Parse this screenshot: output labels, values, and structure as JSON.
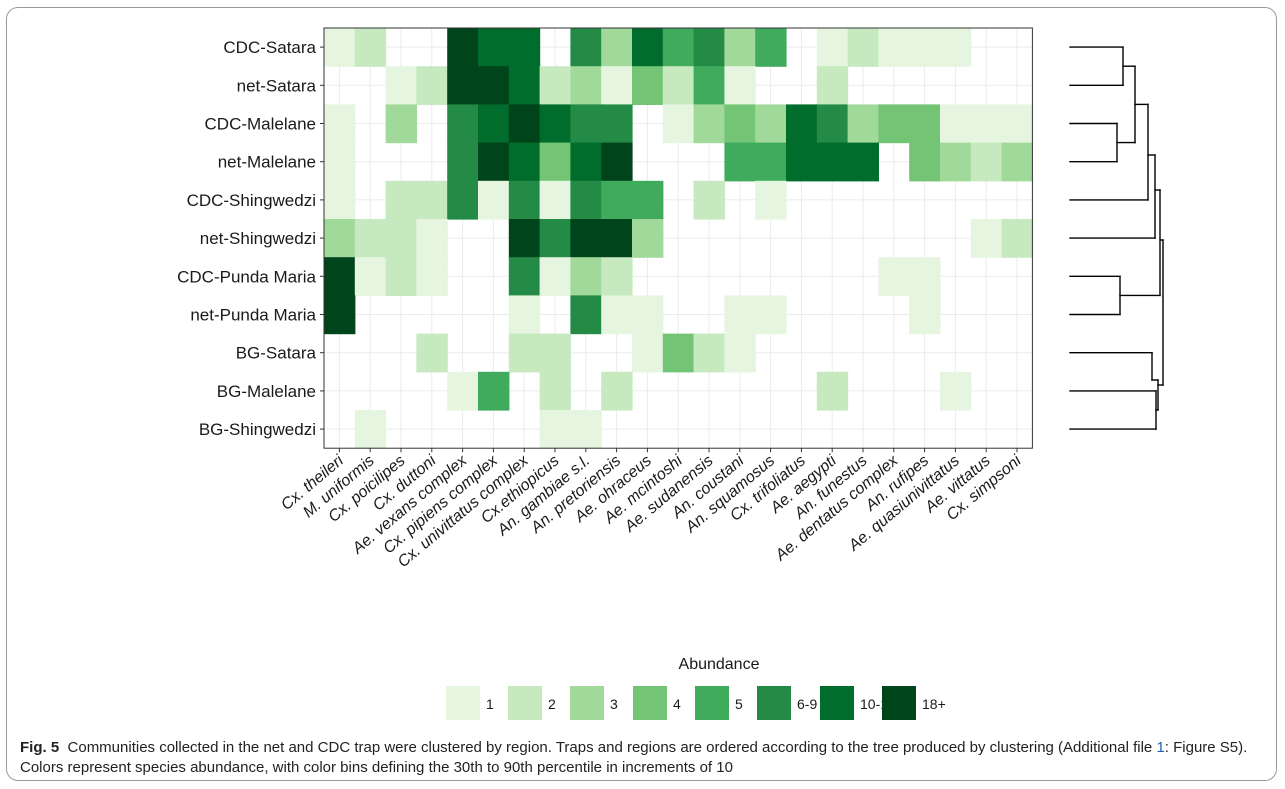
{
  "chart_data": {
    "type": "heatmap",
    "rows": [
      "CDC-Satara",
      "net-Satara",
      "CDC-Malelane",
      "net-Malelane",
      "CDC-Shingwedzi",
      "net-Shingwedzi",
      "CDC-Punda Maria",
      "net-Punda Maria",
      "BG-Satara",
      "BG-Malelane",
      "BG-Shingwedzi"
    ],
    "columns": [
      "Cx. theileri",
      "M. uniformis",
      "Cx. poicilipes",
      "Cx. duttoni",
      "Ae. vexans complex",
      "Cx. pipiens complex",
      "Cx. univittatus complex",
      "Cx.ethiopicus",
      "An. gambiae s.l.",
      "An. pretoriensis",
      "Ae. ohraceus",
      "Ae. mcintoshi",
      "Ae. sudanensis",
      "An. coustani",
      "An. squamosus",
      "Cx. trifoliatus",
      "Ae. aegypti",
      "An. funestus",
      "Ae. dentatus complex",
      "An. rufipes",
      "Ae. quasiunivittatus",
      "Ae. vittatus",
      "Cx. simpsoni"
    ],
    "bin_levels": "0 = none, 1-8 index into legend.bins",
    "matrix": [
      [
        1,
        2,
        0,
        0,
        8,
        7,
        7,
        0,
        6,
        3,
        7,
        5,
        6,
        3,
        5,
        0,
        1,
        2,
        1,
        1,
        1,
        0,
        0
      ],
      [
        0,
        0,
        1,
        2,
        8,
        8,
        7,
        2,
        3,
        1,
        4,
        2,
        5,
        1,
        0,
        0,
        2,
        0,
        0,
        0,
        0,
        0,
        0
      ],
      [
        1,
        0,
        3,
        0,
        6,
        7,
        8,
        7,
        6,
        6,
        0,
        1,
        3,
        4,
        3,
        7,
        6,
        3,
        4,
        4,
        1,
        1,
        1
      ],
      [
        1,
        0,
        0,
        0,
        6,
        8,
        7,
        4,
        7,
        8,
        0,
        0,
        0,
        5,
        5,
        7,
        7,
        7,
        0,
        4,
        3,
        2,
        3
      ],
      [
        1,
        0,
        2,
        2,
        6,
        1,
        6,
        1,
        6,
        5,
        5,
        0,
        2,
        0,
        1,
        0,
        0,
        0,
        0,
        0,
        0,
        0,
        0
      ],
      [
        3,
        2,
        2,
        1,
        0,
        0,
        8,
        6,
        8,
        8,
        3,
        0,
        0,
        0,
        0,
        0,
        0,
        0,
        0,
        0,
        0,
        1,
        2
      ],
      [
        8,
        1,
        2,
        1,
        0,
        0,
        6,
        1,
        3,
        2,
        0,
        0,
        0,
        0,
        0,
        0,
        0,
        0,
        1,
        1,
        0,
        0,
        0
      ],
      [
        8,
        0,
        0,
        0,
        0,
        0,
        1,
        0,
        6,
        1,
        1,
        0,
        0,
        1,
        1,
        0,
        0,
        0,
        0,
        1,
        0,
        0,
        0
      ],
      [
        0,
        0,
        0,
        2,
        0,
        0,
        2,
        2,
        0,
        0,
        1,
        4,
        2,
        1,
        0,
        0,
        0,
        0,
        0,
        0,
        0,
        0,
        0
      ],
      [
        0,
        0,
        0,
        0,
        1,
        5,
        0,
        2,
        0,
        2,
        0,
        0,
        0,
        0,
        0,
        0,
        2,
        0,
        0,
        0,
        1,
        0,
        0
      ],
      [
        0,
        1,
        0,
        0,
        0,
        0,
        0,
        1,
        1,
        0,
        0,
        0,
        0,
        0,
        0,
        0,
        0,
        0,
        0,
        0,
        0,
        0,
        0
      ]
    ],
    "dendrogram": "row clustering tree on right side",
    "grid": true
  },
  "legend": {
    "title": "Abundance",
    "bins": [
      {
        "label": "1",
        "color": "#e5f5e0"
      },
      {
        "label": "2",
        "color": "#c7e9c0"
      },
      {
        "label": "3",
        "color": "#a1d99b"
      },
      {
        "label": "4",
        "color": "#74c476"
      },
      {
        "label": "5",
        "color": "#41ab5d"
      },
      {
        "label": "6-9",
        "color": "#238b45"
      },
      {
        "label": "10-17",
        "color": "#006d2c"
      },
      {
        "label": "18+",
        "color": "#00441b"
      }
    ]
  },
  "caption": {
    "label": "Fig. 5",
    "text_before_link": "Communities collected in the net and CDC trap were clustered by region. Traps and regions are ordered according to the tree produced by clustering (Additional file ",
    "link_text": "1",
    "text_after_link": ": Figure S5). Colors represent species abundance, with color bins defining the 30th to 90th percentile in increments of 10"
  }
}
